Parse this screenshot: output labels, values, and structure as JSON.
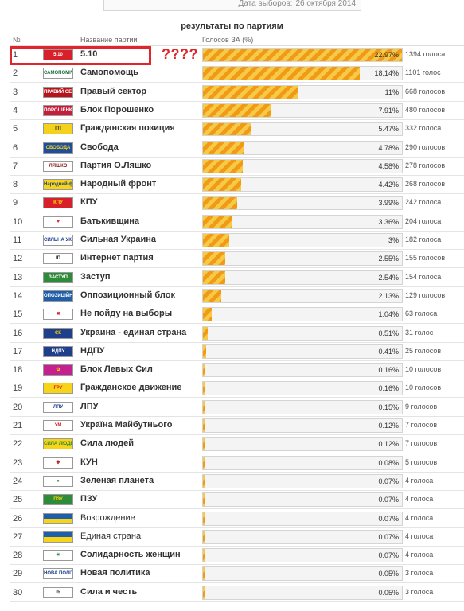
{
  "header": {
    "date_label": "Дата выборов:",
    "date_value": "26 октября 2014",
    "title": "результаты по партиям",
    "col_num": "№",
    "col_party": "Название партии",
    "col_votes": "Голосов ЗА (%)"
  },
  "annotation": {
    "marks": "????"
  },
  "chart_data": {
    "type": "bar",
    "title": "результаты по партиям",
    "xlabel": "",
    "ylabel": "Голосов ЗА (%)",
    "xlim": [
      0,
      22.97
    ],
    "rows": [
      {
        "num": "1",
        "party": "5.10",
        "percent": 22.97,
        "pct_label": "22.97%",
        "votes": "1394 голоса",
        "logo": {
          "text": "5.10",
          "bg": "#d8202a",
          "fg": "#ffffff"
        }
      },
      {
        "num": "2",
        "party": "Самопомощь",
        "percent": 18.14,
        "pct_label": "18.14%",
        "votes": "1101 голос",
        "logo": {
          "text": "САМОПОМІЧ",
          "bg": "#ffffff",
          "fg": "#1a6b3a"
        }
      },
      {
        "num": "3",
        "party": "Правый сектор",
        "percent": 11,
        "pct_label": "11%",
        "votes": "668 голосов",
        "logo": {
          "text": "ПРАВИЙ СЕКТОР",
          "bg": "#b8131b",
          "fg": "#ffffff"
        }
      },
      {
        "num": "4",
        "party": "Блок Порошенко",
        "percent": 7.91,
        "pct_label": "7.91%",
        "votes": "480 голосов",
        "logo": {
          "text": "ПОРОШЕНКО",
          "bg": "#c41e3a",
          "fg": "#ffffff"
        }
      },
      {
        "num": "5",
        "party": "Гражданская позиция",
        "percent": 5.47,
        "pct_label": "5.47%",
        "votes": "332 голоса",
        "logo": {
          "text": "ГП",
          "bg": "#f4d11a",
          "fg": "#333333"
        }
      },
      {
        "num": "6",
        "party": "Свобода",
        "percent": 4.78,
        "pct_label": "4.78%",
        "votes": "290 голосов",
        "logo": {
          "text": "СВОБОДА",
          "bg": "#1f4e9e",
          "fg": "#ffd400"
        }
      },
      {
        "num": "7",
        "party": "Партия О.Ляшко",
        "percent": 4.58,
        "pct_label": "4.58%",
        "votes": "278 голосов",
        "logo": {
          "text": "ЛЯШКО",
          "bg": "#ffffff",
          "fg": "#8b1a1a"
        }
      },
      {
        "num": "8",
        "party": "Народный фронт",
        "percent": 4.42,
        "pct_label": "4.42%",
        "votes": "268 голосов",
        "logo": {
          "text": "Народний фронт",
          "bg": "#f7d417",
          "fg": "#1a3e8c"
        }
      },
      {
        "num": "9",
        "party": "КПУ",
        "percent": 3.99,
        "pct_label": "3.99%",
        "votes": "242 голоса",
        "logo": {
          "text": "КПУ",
          "bg": "#d8202a",
          "fg": "#ffd400"
        }
      },
      {
        "num": "10",
        "party": "Батькивщина",
        "percent": 3.36,
        "pct_label": "3.36%",
        "votes": "204 голоса",
        "logo": {
          "text": "♥",
          "bg": "#ffffff",
          "fg": "#d8202a"
        }
      },
      {
        "num": "11",
        "party": "Сильная Украина",
        "percent": 3,
        "pct_label": "3%",
        "votes": "182 голоса",
        "logo": {
          "text": "СИЛЬНА УКРАЇНА",
          "bg": "#ffffff",
          "fg": "#1a3e8c"
        }
      },
      {
        "num": "12",
        "party": "Интернет партия",
        "percent": 2.55,
        "pct_label": "2.55%",
        "votes": "155 голосов",
        "logo": {
          "text": "IП",
          "bg": "#ffffff",
          "fg": "#222222"
        }
      },
      {
        "num": "13",
        "party": "Заступ",
        "percent": 2.54,
        "pct_label": "2.54%",
        "votes": "154 голоса",
        "logo": {
          "text": "ЗАСТУП",
          "bg": "#2e8b3a",
          "fg": "#ffffff"
        }
      },
      {
        "num": "14",
        "party": "Оппозиционный блок",
        "percent": 2.13,
        "pct_label": "2.13%",
        "votes": "129 голосов",
        "logo": {
          "text": "ОПОЗИЦІЙНИЙ",
          "bg": "#1f5ea8",
          "fg": "#ffffff"
        }
      },
      {
        "num": "15",
        "party": "Не пойду на выборы",
        "percent": 1.04,
        "pct_label": "1.04%",
        "votes": "63 голоса",
        "logo": {
          "text": "✖",
          "bg": "#ffffff",
          "fg": "#d8202a"
        }
      },
      {
        "num": "16",
        "party": "Украина - единая страна",
        "percent": 0.51,
        "pct_label": "0.51%",
        "votes": "31 голос",
        "logo": {
          "text": "ЄК",
          "bg": "#1f3e8c",
          "fg": "#ffd400"
        }
      },
      {
        "num": "17",
        "party": "НДПУ",
        "percent": 0.41,
        "pct_label": "0.41%",
        "votes": "25 голосов",
        "logo": {
          "text": "НДПУ",
          "bg": "#1f3e8c",
          "fg": "#ffffff"
        }
      },
      {
        "num": "18",
        "party": "Блок Левых Сил",
        "percent": 0.16,
        "pct_label": "0.16%",
        "votes": "10 голосов",
        "logo": {
          "text": "✿",
          "bg": "#c4208f",
          "fg": "#ffd400"
        }
      },
      {
        "num": "19",
        "party": "Гражданское движение",
        "percent": 0.16,
        "pct_label": "0.16%",
        "votes": "10 голосов",
        "logo": {
          "text": "ГРУ",
          "bg": "#f7d417",
          "fg": "#d8202a"
        }
      },
      {
        "num": "20",
        "party": "ЛПУ",
        "percent": 0.15,
        "pct_label": "0.15%",
        "votes": "9 голосов",
        "logo": {
          "text": "ЛПУ",
          "bg": "#ffffff",
          "fg": "#1f3e8c"
        }
      },
      {
        "num": "21",
        "party": "Україна Майбутнього",
        "percent": 0.12,
        "pct_label": "0.12%",
        "votes": "7 голосов",
        "logo": {
          "text": "УМ",
          "bg": "#ffffff",
          "fg": "#d8202a"
        }
      },
      {
        "num": "22",
        "party": "Сила людей",
        "percent": 0.12,
        "pct_label": "0.12%",
        "votes": "7 голосов",
        "logo": {
          "text": "СИЛА ЛЮДЕЙ",
          "bg": "#f7d417",
          "fg": "#2e8b3a"
        }
      },
      {
        "num": "23",
        "party": "КУН",
        "percent": 0.08,
        "pct_label": "0.08%",
        "votes": "5 голосов",
        "logo": {
          "text": "✚",
          "bg": "#ffffff",
          "fg": "#b8131b"
        }
      },
      {
        "num": "24",
        "party": "Зеленая планета",
        "percent": 0.07,
        "pct_label": "0.07%",
        "votes": "4 голоса",
        "logo": {
          "text": "●",
          "bg": "#ffffff",
          "fg": "#2e8b3a"
        }
      },
      {
        "num": "25",
        "party": "ПЗУ",
        "percent": 0.07,
        "pct_label": "0.07%",
        "votes": "4 голоса",
        "logo": {
          "text": "ПЗУ",
          "bg": "#2e8b3a",
          "fg": "#ffd400"
        }
      },
      {
        "num": "26",
        "party": "Возрождение",
        "percent": 0.07,
        "pct_label": "0.07%",
        "votes": "4 голоса",
        "logo": {
          "text": "",
          "bg": "linear-gradient(#1f5ea8 50%, #f7d417 50%)",
          "fg": "#ffffff"
        },
        "plain": true
      },
      {
        "num": "27",
        "party": "Единая страна",
        "percent": 0.07,
        "pct_label": "0.07%",
        "votes": "4 голоса",
        "logo": {
          "text": "",
          "bg": "linear-gradient(#1f5ea8 50%, #f7d417 50%)",
          "fg": "#ffffff"
        },
        "plain": true
      },
      {
        "num": "28",
        "party": "Солидарность женщин",
        "percent": 0.07,
        "pct_label": "0.07%",
        "votes": "4 голоса",
        "logo": {
          "text": "☀",
          "bg": "#ffffff",
          "fg": "#2e8b3a"
        }
      },
      {
        "num": "29",
        "party": "Новая политика",
        "percent": 0.05,
        "pct_label": "0.05%",
        "votes": "3 голоса",
        "logo": {
          "text": "НОВА ПОЛІТИКА",
          "bg": "#ffffff",
          "fg": "#1f3e8c"
        }
      },
      {
        "num": "30",
        "party": "Сила и честь",
        "percent": 0.05,
        "pct_label": "0.05%",
        "votes": "3 голоса",
        "logo": {
          "text": "✠",
          "bg": "#ffffff",
          "fg": "#555555"
        }
      }
    ]
  }
}
